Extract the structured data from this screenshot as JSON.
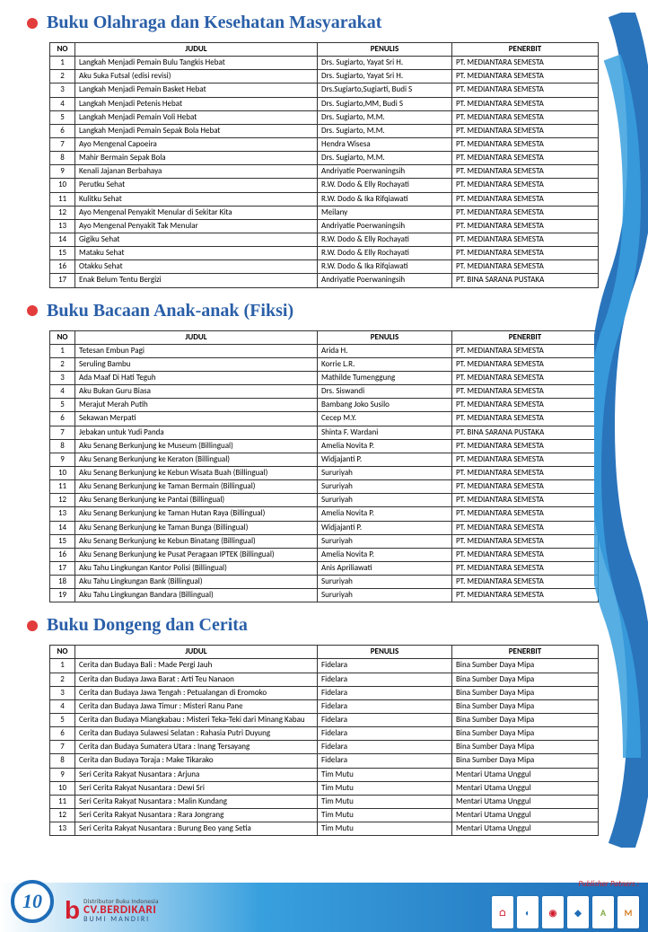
{
  "page_number": "10",
  "company": {
    "tagline": "Distributor Buku Indonesia",
    "name": "CV.BERDIKARI",
    "sub": "BUMI MANDIRI"
  },
  "partners_label": "Publisher Patners :",
  "sections": [
    {
      "title": "Buku Olahraga dan Kesehatan Masyarakat",
      "headers": [
        "NO",
        "JUDUL",
        "PENULIS",
        "PENERBIT"
      ],
      "rows": [
        [
          "1",
          "Langkah Menjadi Pemain Bulu Tangkis Hebat",
          "Drs. Sugiarto, Yayat Sri H.",
          "PT. MEDIANTARA SEMESTA"
        ],
        [
          "2",
          "Aku Suka Futsal (edisi revisi)",
          "Drs. Sugiarto, Yayat Sri H.",
          "PT. MEDIANTARA SEMESTA"
        ],
        [
          "3",
          "Langkah Menjadi Pemain Basket Hebat",
          "Drs.Sugiarto,Sugiarti, Budi S",
          "PT. MEDIANTARA SEMESTA"
        ],
        [
          "4",
          "Langkah Menjadi Petenis Hebat",
          "Drs. Sugiarto,MM, Budi S",
          "PT. MEDIANTARA SEMESTA"
        ],
        [
          "5",
          "Langkah Menjadi Pemain Voli Hebat",
          "Drs. Sugiarto, M.M.",
          "PT. MEDIANTARA SEMESTA"
        ],
        [
          "6",
          "Langkah Menjadi Pemain Sepak Bola Hebat",
          "Drs. Sugiarto, M.M.",
          "PT. MEDIANTARA SEMESTA"
        ],
        [
          "7",
          "Ayo Mengenal Capoeira",
          "Hendra Wisesa",
          "PT. MEDIANTARA SEMESTA"
        ],
        [
          "8",
          "Mahir Bermain Sepak Bola",
          "Drs. Sugiarto, M.M.",
          "PT. MEDIANTARA SEMESTA"
        ],
        [
          "9",
          "Kenali Jajanan Berbahaya",
          "Andriyatie Poerwaningsih",
          "PT. MEDIANTARA SEMESTA"
        ],
        [
          "10",
          "Perutku Sehat",
          "R.W. Dodo & Elly Rochayati",
          "PT. MEDIANTARA SEMESTA"
        ],
        [
          "11",
          "Kulitku Sehat",
          "R.W. Dodo & Ika Rifqiawati",
          "PT. MEDIANTARA SEMESTA"
        ],
        [
          "12",
          "Ayo Mengenal Penyakit Menular di Sekitar Kita",
          "Meilany",
          "PT. MEDIANTARA SEMESTA"
        ],
        [
          "13",
          "Ayo Mengenal Penyakit Tak Menular",
          "Andriyatie Poerwaningsih",
          "PT. MEDIANTARA SEMESTA"
        ],
        [
          "14",
          "Gigiku Sehat",
          "R.W. Dodo & Elly Rochayati",
          "PT. MEDIANTARA SEMESTA"
        ],
        [
          "15",
          "Mataku Sehat",
          "R.W. Dodo & Elly Rochayati",
          "PT. MEDIANTARA SEMESTA"
        ],
        [
          "16",
          "Otakku Sehat",
          "R.W. Dodo & Ika Rifqiawati",
          "PT. MEDIANTARA SEMESTA"
        ],
        [
          "17",
          "Enak Belum Tentu Bergizi",
          "Andriyatie Poerwaningsih",
          "PT. BINA SARANA PUSTAKA"
        ]
      ]
    },
    {
      "title": "Buku Bacaan Anak-anak (Fiksi)",
      "headers": [
        "NO",
        "JUDUL",
        "PENULIS",
        "PENERBIT"
      ],
      "rows": [
        [
          "1",
          "Tetesan Embun Pagi",
          "Arida H.",
          "PT. MEDIANTARA SEMESTA"
        ],
        [
          "2",
          "Seruling Bambu",
          "Korrie L.R.",
          "PT. MEDIANTARA SEMESTA"
        ],
        [
          "3",
          "Ada Maaf Di Hati Teguh",
          "Mathilde Tumenggung",
          "PT. MEDIANTARA SEMESTA"
        ],
        [
          "4",
          "Aku Bukan Guru Biasa",
          "Drs. Siswandi",
          "PT. MEDIANTARA SEMESTA"
        ],
        [
          "5",
          "Merajut Merah Putih",
          "Bambang Joko Susilo",
          "PT. MEDIANTARA SEMESTA"
        ],
        [
          "6",
          "Sekawan Merpati",
          "Cecep M.Y.",
          "PT. MEDIANTARA SEMESTA"
        ],
        [
          "7",
          "Jebakan untuk Yudi Panda",
          "Shinta F. Wardani",
          "PT. BINA SARANA PUSTAKA"
        ],
        [
          "8",
          "Aku Senang Berkunjung ke Museum (Billingual)",
          "Amelia Novita P.",
          "PT. MEDIANTARA SEMESTA"
        ],
        [
          "9",
          "Aku Senang Berkunjung ke Keraton (Billingual)",
          "Widjajanti P.",
          "PT. MEDIANTARA SEMESTA"
        ],
        [
          "10",
          "Aku Senang Berkunjung ke Kebun Wisata Buah (Billingual)",
          "Sururiyah",
          "PT. MEDIANTARA SEMESTA"
        ],
        [
          "11",
          "Aku Senang Berkunjung ke Taman Bermain (Billingual)",
          "Sururiyah",
          "PT. MEDIANTARA SEMESTA"
        ],
        [
          "12",
          "Aku Senang Berkunjung ke Pantai (Billingual)",
          "Sururiyah",
          "PT. MEDIANTARA SEMESTA"
        ],
        [
          "13",
          "Aku Senang Berkunjung ke Taman Hutan Raya (Billingual)",
          "Amelia Novita P.",
          "PT. MEDIANTARA SEMESTA"
        ],
        [
          "14",
          "Aku Senang Berkunjung ke Taman Bunga (Billingual)",
          "Widjajanti P.",
          "PT. MEDIANTARA SEMESTA"
        ],
        [
          "15",
          "Aku Senang Berkunjung ke Kebun Binatang (Billingual)",
          "Sururiyah",
          "PT. MEDIANTARA SEMESTA"
        ],
        [
          "16",
          "Aku Senang Berkunjung ke Pusat Peragaan IPTEK (Billingual)",
          "Amelia Novita P.",
          "PT. MEDIANTARA SEMESTA"
        ],
        [
          "17",
          "Aku Tahu Lingkungan Kantor Polisi (Billingual)",
          "Anis Apriliawati",
          "PT. MEDIANTARA SEMESTA"
        ],
        [
          "18",
          "Aku Tahu Lingkungan Bank (Billingual)",
          "Sururiyah",
          "PT. MEDIANTARA SEMESTA"
        ],
        [
          "19",
          "Aku Tahu Lingkungan Bandara (Billingual)",
          "Sururiyah",
          "PT. MEDIANTARA SEMESTA"
        ]
      ]
    },
    {
      "title": "Buku Dongeng dan Cerita",
      "headers": [
        "NO",
        "JUDUL",
        "PENULIS",
        "PENERBIT"
      ],
      "rows": [
        [
          "1",
          "Cerita dan Budaya Bali : Made Pergi Jauh",
          "Fidelara",
          "Bina Sumber Daya Mipa"
        ],
        [
          "2",
          "Cerita dan Budaya Jawa Barat : Arti Teu Nanaon",
          "Fidelara",
          "Bina Sumber Daya Mipa"
        ],
        [
          "3",
          "Cerita dan Budaya Jawa Tengah : Petualangan di Eromoko",
          "Fidelara",
          "Bina Sumber Daya Mipa"
        ],
        [
          "4",
          "Cerita dan Budaya Jawa Timur : Misteri Ranu Pane",
          "Fidelara",
          "Bina Sumber Daya Mipa"
        ],
        [
          "5",
          "Cerita dan Budaya Miangkabau : Misteri Teka-Teki dari Minang Kabau",
          "Fidelara",
          "Bina Sumber Daya Mipa"
        ],
        [
          "6",
          "Cerita dan Budaya Sulawesi Selatan : Rahasia Putri Duyung",
          "Fidelara",
          "Bina Sumber Daya Mipa"
        ],
        [
          "7",
          "Cerita dan Budaya Sumatera Utara : Inang Tersayang",
          "Fidelara",
          "Bina Sumber Daya Mipa"
        ],
        [
          "8",
          "Cerita dan Budaya Toraja : Make Tikarako",
          "Fidelara",
          "Bina Sumber Daya Mipa"
        ],
        [
          "9",
          "Seri Cerita Rakyat Nusantara : Arjuna",
          "Tim Mutu",
          "Mentari Utama Unggul"
        ],
        [
          "10",
          "Seri Cerita Rakyat Nusantara : Dewi Sri",
          "Tim Mutu",
          "Mentari Utama Unggul"
        ],
        [
          "11",
          "Seri Cerita Rakyat Nusantara : Malin Kundang",
          "Tim Mutu",
          "Mentari Utama Unggul"
        ],
        [
          "12",
          "Seri Cerita Rakyat Nusantara : Rara Jongrang",
          "Tim Mutu",
          "Mentari Utama Unggul"
        ],
        [
          "13",
          "Seri Cerita Rakyat Nusantara : Burung Beo yang Setia",
          "Tim Mutu",
          "Mentari Utama Unggul"
        ]
      ]
    }
  ],
  "partners": [
    "",
    "",
    "",
    "",
    "A",
    "M"
  ],
  "colors": {
    "accent": "#2a5fa8",
    "bullet": "#e23c3c",
    "footer1": "#39a0de",
    "footer2": "#1f6db8",
    "brand": "#d21f2e"
  }
}
